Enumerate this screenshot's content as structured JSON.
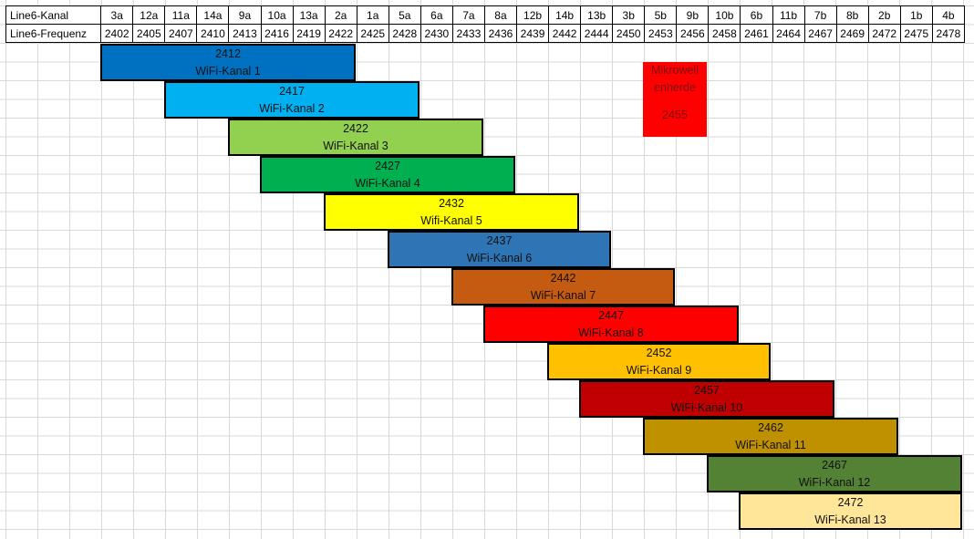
{
  "table": {
    "row_labels": [
      "Line6-Kanal",
      "Line6-Frequenz"
    ],
    "channels": [
      "3a",
      "12a",
      "11a",
      "14a",
      "9a",
      "10a",
      "13a",
      "2a",
      "1a",
      "5a",
      "6a",
      "7a",
      "8a",
      "12b",
      "14b",
      "13b",
      "3b",
      "5b",
      "9b",
      "10b",
      "6b",
      "11b",
      "7b",
      "8b",
      "2b",
      "1b",
      "4b"
    ],
    "frequencies": [
      "2402",
      "2405",
      "2407",
      "2410",
      "2413",
      "2416",
      "2419",
      "2422",
      "2425",
      "2428",
      "2430",
      "2433",
      "2436",
      "2439",
      "2442",
      "2444",
      "2450",
      "2453",
      "2456",
      "2458",
      "2461",
      "2464",
      "2467",
      "2469",
      "2472",
      "2475",
      "2478"
    ]
  },
  "wifi_channels": [
    {
      "freq": "2412",
      "label": "WiFi-Kanal 1",
      "color": "#0070c0",
      "col_start": 0,
      "col_end": 8
    },
    {
      "freq": "2417",
      "label": "WiFi-Kanal 2",
      "color": "#00b0f0",
      "col_start": 2,
      "col_end": 10
    },
    {
      "freq": "2422",
      "label": "WiFi-Kanal 3",
      "color": "#92d050",
      "col_start": 4,
      "col_end": 12
    },
    {
      "freq": "2427",
      "label": "WiFi-Kanal 4",
      "color": "#00b050",
      "col_start": 5,
      "col_end": 13
    },
    {
      "freq": "2432",
      "label": "Wifi-Kanal 5",
      "color": "#ffff00",
      "col_start": 7,
      "col_end": 15
    },
    {
      "freq": "2437",
      "label": "WiFi-Kanal 6",
      "color": "#2e75b6",
      "col_start": 9,
      "col_end": 16
    },
    {
      "freq": "2442",
      "label": "WiFi-Kanal 7",
      "color": "#c55a11",
      "col_start": 11,
      "col_end": 18
    },
    {
      "freq": "2447",
      "label": "WiFi-Kanal 8",
      "color": "#ff0000",
      "col_start": 12,
      "col_end": 20
    },
    {
      "freq": "2452",
      "label": "WiFi-Kanal 9",
      "color": "#ffc000",
      "col_start": 14,
      "col_end": 21
    },
    {
      "freq": "2457",
      "label": "WiFi-Kanal 10",
      "color": "#c00000",
      "col_start": 15,
      "col_end": 23
    },
    {
      "freq": "2462",
      "label": "WiFi-Kanal 11",
      "color": "#bf9000",
      "col_start": 17,
      "col_end": 25
    },
    {
      "freq": "2467",
      "label": "WiFi-Kanal 12",
      "color": "#548235",
      "col_start": 19,
      "col_end": 27
    },
    {
      "freq": "2472",
      "label": "WiFi-Kanal 13",
      "color": "#ffe699",
      "col_start": 20,
      "col_end": 27
    }
  ],
  "microwave": {
    "line1": "Mikrowell",
    "line2": "enherde",
    "freq": "2455",
    "color": "#ff0000",
    "col_start": 17,
    "col_end": 19
  }
}
